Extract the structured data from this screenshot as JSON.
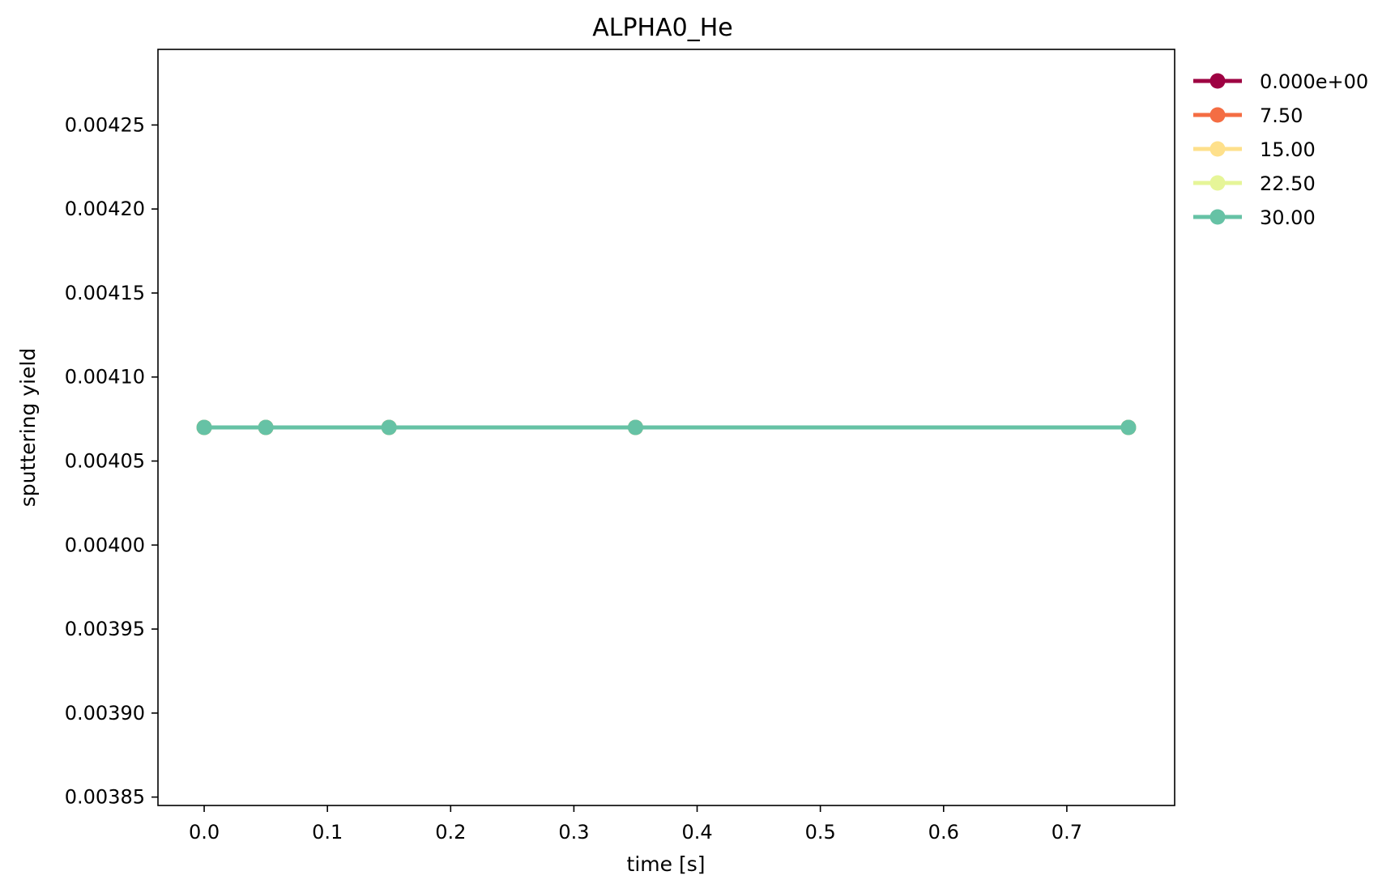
{
  "chart_data": {
    "type": "line",
    "title": "ALPHA0_He",
    "xlabel": "time [s]",
    "ylabel": "sputtering yield",
    "xlim": [
      -0.0375,
      0.7875
    ],
    "ylim": [
      0.003845,
      0.004295
    ],
    "xticks": [
      0.0,
      0.1,
      0.2,
      0.3,
      0.4,
      0.5,
      0.6,
      0.7
    ],
    "xtick_labels": [
      "0.0",
      "0.1",
      "0.2",
      "0.3",
      "0.4",
      "0.5",
      "0.6",
      "0.7"
    ],
    "yticks": [
      0.00385,
      0.0039,
      0.00395,
      0.004,
      0.00405,
      0.0041,
      0.00415,
      0.0042,
      0.00425
    ],
    "ytick_labels": [
      "0.00385",
      "0.00390",
      "0.00395",
      "0.00400",
      "0.00405",
      "0.00410",
      "0.00415",
      "0.00420",
      "0.00425"
    ],
    "grid": false,
    "legend_position": "outside-top-right",
    "x": [
      0.0,
      0.05,
      0.15,
      0.35,
      0.75
    ],
    "series": [
      {
        "name": "0.000e+00",
        "color": "#9e0142",
        "values": [
          0.00407,
          0.00407,
          0.00407,
          0.00407,
          0.00407
        ]
      },
      {
        "name": "7.50",
        "color": "#f46d43",
        "values": [
          0.00407,
          0.00407,
          0.00407,
          0.00407,
          0.00407
        ]
      },
      {
        "name": "15.00",
        "color": "#fee08b",
        "values": [
          0.00407,
          0.00407,
          0.00407,
          0.00407,
          0.00407
        ]
      },
      {
        "name": "22.50",
        "color": "#e6f598",
        "values": [
          0.00407,
          0.00407,
          0.00407,
          0.00407,
          0.00407
        ]
      },
      {
        "name": "30.00",
        "color": "#66c2a5",
        "values": [
          0.00407,
          0.00407,
          0.00407,
          0.00407,
          0.00407
        ]
      }
    ]
  }
}
